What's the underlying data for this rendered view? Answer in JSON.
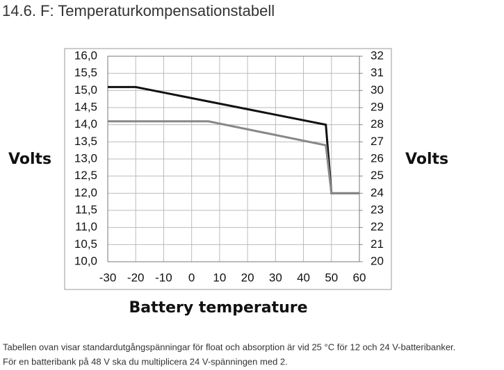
{
  "header": {
    "title": "14.6. F: Temperaturkompensationstabell"
  },
  "chart_data": {
    "type": "line",
    "ylabel": "Volts",
    "y2label": "Volts",
    "xlabel": "Battery temperature",
    "xlim": [
      -30,
      60
    ],
    "xticks": [
      -30,
      -20,
      -10,
      0,
      10,
      20,
      30,
      40,
      50,
      60
    ],
    "ylim": [
      10,
      16
    ],
    "yticks": [
      {
        "value": 10,
        "label": "10,0"
      },
      {
        "value": 10.5,
        "label": "10,5"
      },
      {
        "value": 11,
        "label": "11,0"
      },
      {
        "value": 11.5,
        "label": "11,5"
      },
      {
        "value": 12,
        "label": "12,0"
      },
      {
        "value": 12.5,
        "label": "12,5"
      },
      {
        "value": 13,
        "label": "13,0"
      },
      {
        "value": 13.5,
        "label": "13,5"
      },
      {
        "value": 14,
        "label": "14,0"
      },
      {
        "value": 14.5,
        "label": "14,5"
      },
      {
        "value": 15,
        "label": "15,0"
      },
      {
        "value": 15.5,
        "label": "15,5"
      },
      {
        "value": 16,
        "label": "16,0"
      }
    ],
    "y2lim": [
      20,
      32
    ],
    "y2ticks": [
      20,
      21,
      22,
      23,
      24,
      25,
      26,
      27,
      28,
      29,
      30,
      31,
      32
    ],
    "grid": true,
    "series": [
      {
        "color": "#111111",
        "x": [
          -30,
          -20,
          48,
          50,
          60
        ],
        "values": [
          15.1,
          15.1,
          14.0,
          12.0,
          12.0
        ]
      },
      {
        "color": "#888888",
        "x": [
          -30,
          6,
          48,
          50,
          60
        ],
        "values": [
          14.1,
          14.1,
          13.4,
          12.0,
          12.0
        ]
      }
    ]
  },
  "footnote": {
    "lines": [
      "Tabellen ovan visar standardutgångspänningar för float och absorption är vid 25 °C för 12 och 24 V-batteribanker.",
      "För en batteribank på 48 V ska du multiplicera 24 V-spänningen med 2."
    ]
  }
}
